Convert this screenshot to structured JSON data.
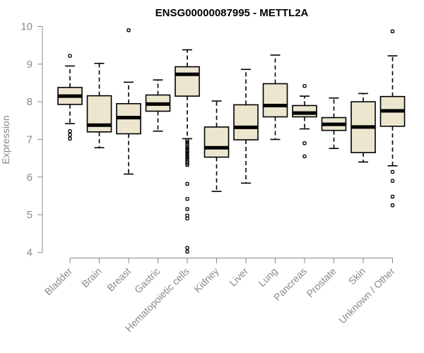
{
  "chart_data": {
    "type": "boxplot",
    "title": "ENSG00000087995 - METTL2A",
    "xlabel": "",
    "ylabel": "Expression",
    "ylim": [
      4,
      10
    ],
    "yticks": [
      "4",
      "5",
      "6",
      "7",
      "8",
      "9",
      "10"
    ],
    "box_fill": "#ede6cf",
    "categories": [
      "Bladder",
      "Brain",
      "Breast",
      "Gastric",
      "Hematopoietic cells",
      "Kidney",
      "Liver",
      "Lung",
      "Pancreas",
      "Prostate",
      "Skin",
      "Unknown / Other"
    ],
    "boxes": [
      {
        "name": "Bladder",
        "whisker_low": 7.42,
        "q1": 7.93,
        "median": 8.15,
        "q3": 8.38,
        "whisker_high": 8.95,
        "outliers": [
          9.22,
          7.22,
          7.12,
          7.02
        ]
      },
      {
        "name": "Brain",
        "whisker_low": 6.78,
        "q1": 7.2,
        "median": 7.38,
        "q3": 8.16,
        "whisker_high": 9.02,
        "outliers": []
      },
      {
        "name": "Breast",
        "whisker_low": 6.08,
        "q1": 7.15,
        "median": 7.58,
        "q3": 7.95,
        "whisker_high": 8.52,
        "outliers": [
          9.9
        ]
      },
      {
        "name": "Gastric",
        "whisker_low": 7.22,
        "q1": 7.75,
        "median": 7.94,
        "q3": 8.18,
        "whisker_high": 8.58,
        "outliers": []
      },
      {
        "name": "Hematopoietic cells",
        "whisker_low": 7.02,
        "q1": 8.15,
        "median": 8.73,
        "q3": 8.93,
        "whisker_high": 9.38,
        "outliers": [
          6.98,
          6.93,
          6.88,
          6.82,
          6.77,
          6.72,
          6.68,
          6.63,
          6.58,
          6.53,
          6.48,
          6.44,
          6.4,
          6.36,
          6.32,
          5.82,
          5.42,
          5.15,
          4.98,
          4.9,
          4.12,
          4.02
        ]
      },
      {
        "name": "Kidney",
        "whisker_low": 5.62,
        "q1": 6.53,
        "median": 6.78,
        "q3": 7.33,
        "whisker_high": 8.02,
        "outliers": []
      },
      {
        "name": "Liver",
        "whisker_low": 5.84,
        "q1": 6.99,
        "median": 7.32,
        "q3": 7.92,
        "whisker_high": 8.86,
        "outliers": []
      },
      {
        "name": "Lung",
        "whisker_low": 7.0,
        "q1": 7.6,
        "median": 7.9,
        "q3": 8.48,
        "whisker_high": 9.24,
        "outliers": []
      },
      {
        "name": "Pancreas",
        "whisker_low": 7.28,
        "q1": 7.6,
        "median": 7.7,
        "q3": 7.9,
        "whisker_high": 8.15,
        "outliers": [
          8.42,
          6.9,
          6.55
        ]
      },
      {
        "name": "Prostate",
        "whisker_low": 6.76,
        "q1": 7.24,
        "median": 7.4,
        "q3": 7.58,
        "whisker_high": 8.1,
        "outliers": []
      },
      {
        "name": "Skin",
        "whisker_low": 6.4,
        "q1": 6.65,
        "median": 7.33,
        "q3": 8.0,
        "whisker_high": 8.22,
        "outliers": []
      },
      {
        "name": "Unknown / Other",
        "whisker_low": 6.3,
        "q1": 7.35,
        "median": 7.76,
        "q3": 8.14,
        "whisker_high": 9.22,
        "outliers": [
          9.87,
          6.14,
          5.9,
          5.48,
          5.25
        ]
      }
    ]
  }
}
